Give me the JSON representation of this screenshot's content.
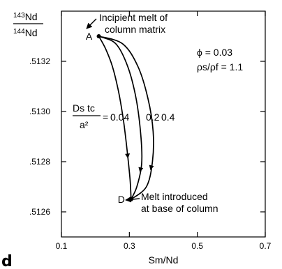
{
  "chart_data": {
    "type": "line",
    "title": "",
    "panel_label": "d",
    "xlabel": "Sm/Nd",
    "ylabel": {
      "top": "143Nd",
      "bottom": "144Nd",
      "top_sup": "143",
      "top_base": "Nd",
      "bottom_sup": "144",
      "bottom_base": "Nd"
    },
    "xlim": [
      0.1,
      0.7
    ],
    "ylim": [
      0.5125,
      0.5134
    ],
    "xticks": [
      0.1,
      0.3,
      0.5,
      0.7
    ],
    "xtick_labels": [
      "0.1",
      "0.3",
      "0.5",
      "0.7"
    ],
    "yticks": [
      0.5126,
      0.5128,
      0.513,
      0.5132
    ],
    "ytick_labels": [
      ".5126",
      ".5128",
      ".5130",
      ".5132"
    ],
    "grid": false,
    "legend": "none",
    "parameters": {
      "phi": "ϕ = 0.03",
      "rho": "ρs/ρf = 1.1",
      "phi_value": 0.03,
      "rho_value": 1.1
    },
    "points": [
      {
        "label": "A",
        "x": 0.21,
        "y": 0.5133,
        "annotation": [
          "Incipient melt of",
          "column matrix"
        ]
      },
      {
        "label": "D",
        "x": 0.305,
        "y": 0.51265,
        "annotation": [
          "Melt introduced",
          "at base of column"
        ]
      }
    ],
    "series_label": {
      "prefix_num": "Ds tc",
      "prefix_den": "a²",
      "eq": "="
    },
    "series": [
      {
        "name": "0.04",
        "x": [
          0.21,
          0.23,
          0.25,
          0.268,
          0.282,
          0.293,
          0.302,
          0.305
        ],
        "y": [
          0.5133,
          0.51325,
          0.51318,
          0.51308,
          0.51297,
          0.51285,
          0.51273,
          0.51265
        ]
      },
      {
        "name": "0.2",
        "x": [
          0.21,
          0.26,
          0.295,
          0.32,
          0.334,
          0.336,
          0.322,
          0.305
        ],
        "y": [
          0.5133,
          0.51327,
          0.51318,
          0.51305,
          0.5129,
          0.51279,
          0.5127,
          0.51265
        ]
      },
      {
        "name": "0.4",
        "x": [
          0.21,
          0.28,
          0.325,
          0.355,
          0.37,
          0.368,
          0.35,
          0.305
        ],
        "y": [
          0.5133,
          0.51327,
          0.51318,
          0.51305,
          0.51292,
          0.5128,
          0.5127,
          0.51265
        ]
      }
    ],
    "curve_labels": [
      "0.04",
      "0.2",
      "0.4"
    ]
  }
}
